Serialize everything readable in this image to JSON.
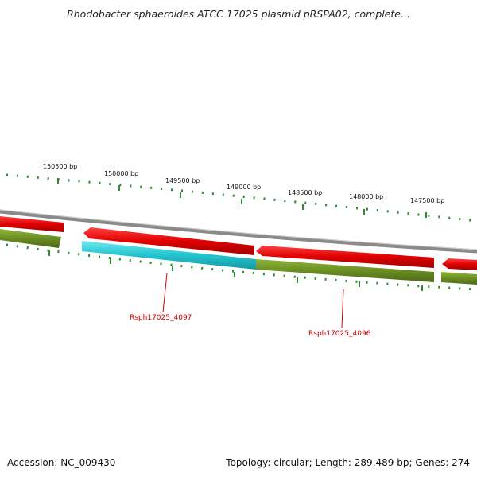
{
  "title": "Rhodobacter sphaeroides ATCC 17025 plasmid pRSPA02, complete...",
  "footer": {
    "accession": "Accession: NC_009430",
    "summary": "Topology: circular; Length: 289,489 bp; Genes: 274"
  },
  "scale_labels": [
    "150500 bp",
    "150000 bp",
    "149500 bp",
    "149000 bp",
    "148500 bp",
    "148000 bp",
    "147500 bp"
  ],
  "gene_labels": [
    "Rsph17025_4097",
    "Rsph17025_4096"
  ],
  "colors": {
    "backbone": "#8a8a8a",
    "forward_gene": "#e00000",
    "reverse_gene": "#6b8e23",
    "highlight_gene": "#22c4d0",
    "tick": "#2e8b2e",
    "gene_label": "#cc0000"
  }
}
